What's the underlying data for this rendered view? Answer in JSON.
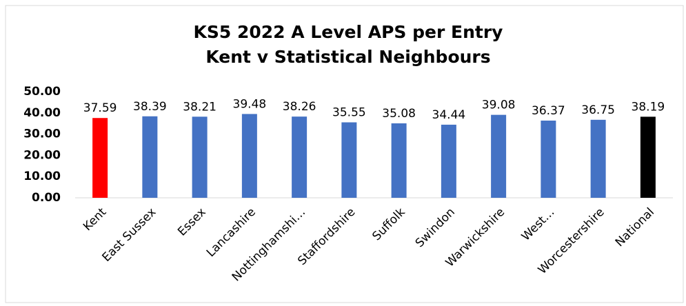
{
  "chart_data": {
    "type": "bar",
    "title": "KS5 2022 A Level APS per Entry",
    "subtitle": "Kent v Statistical Neighbours",
    "categories": [
      "Kent",
      "East Sussex",
      "Essex",
      "Lancashire",
      "Nottinghamshi…",
      "Staffordshire",
      "Suffolk",
      "Swindon",
      "Warwickshire",
      "West…",
      "Worcestershire",
      "National"
    ],
    "values": [
      37.59,
      38.39,
      38.21,
      39.48,
      38.26,
      35.55,
      35.08,
      34.44,
      39.08,
      36.37,
      36.75,
      38.19
    ],
    "colors": [
      "#ff0000",
      "#4472c4",
      "#4472c4",
      "#4472c4",
      "#4472c4",
      "#4472c4",
      "#4472c4",
      "#4472c4",
      "#4472c4",
      "#4472c4",
      "#4472c4",
      "#000000"
    ],
    "ylim": [
      0,
      50
    ],
    "yticks": [
      {
        "value": 0,
        "label": "0.00"
      },
      {
        "value": 10,
        "label": "10.00"
      },
      {
        "value": 20,
        "label": "20.00"
      },
      {
        "value": 30,
        "label": "30.00"
      },
      {
        "value": 40,
        "label": "40.00"
      },
      {
        "value": 50,
        "label": "50.00"
      }
    ],
    "grid": false
  }
}
